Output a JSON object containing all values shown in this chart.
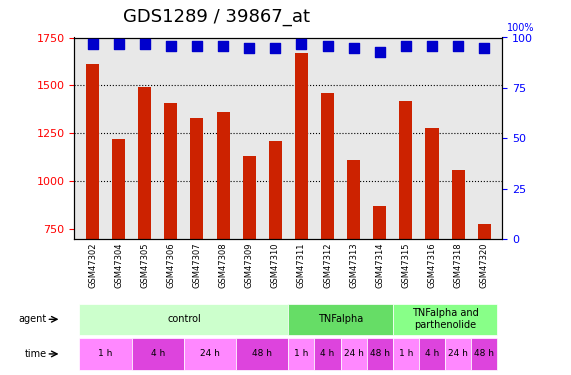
{
  "title": "GDS1289 / 39867_at",
  "samples": [
    "GSM47302",
    "GSM47304",
    "GSM47305",
    "GSM47306",
    "GSM47307",
    "GSM47308",
    "GSM47309",
    "GSM47310",
    "GSM47311",
    "GSM47312",
    "GSM47313",
    "GSM47314",
    "GSM47315",
    "GSM47316",
    "GSM47318",
    "GSM47320"
  ],
  "counts": [
    1610,
    1220,
    1490,
    1410,
    1330,
    1360,
    1130,
    1210,
    1670,
    1460,
    1110,
    870,
    1420,
    1280,
    1060,
    780
  ],
  "percentile_ranks": [
    97,
    97,
    97,
    96,
    96,
    96,
    95,
    95,
    97,
    96,
    95,
    93,
    96,
    96,
    96,
    95
  ],
  "ylim_left": [
    700,
    1750
  ],
  "ylim_right": [
    0,
    100
  ],
  "yticks_left": [
    750,
    1000,
    1250,
    1500,
    1750
  ],
  "yticks_right": [
    0,
    25,
    50,
    75,
    100
  ],
  "bar_color": "#cc2200",
  "dot_color": "#0000cc",
  "background_color": "#e8e8e8",
  "agent_groups": [
    {
      "label": "control",
      "start": 0,
      "end": 8,
      "color": "#ccffcc"
    },
    {
      "label": "TNFalpha",
      "start": 8,
      "end": 12,
      "color": "#66dd66"
    },
    {
      "label": "TNFalpha and\nparthenolide",
      "start": 12,
      "end": 16,
      "color": "#88ff88"
    }
  ],
  "time_groups": [
    {
      "label": "1 h",
      "start": 0,
      "end": 2,
      "color": "#ff88ff"
    },
    {
      "label": "4 h",
      "start": 2,
      "end": 4,
      "color": "#dd44dd"
    },
    {
      "label": "24 h",
      "start": 4,
      "end": 6,
      "color": "#ff88ff"
    },
    {
      "label": "48 h",
      "start": 6,
      "end": 8,
      "color": "#dd44dd"
    },
    {
      "label": "1 h",
      "start": 8,
      "end": 9,
      "color": "#ff88ff"
    },
    {
      "label": "4 h",
      "start": 9,
      "end": 10,
      "color": "#dd44dd"
    },
    {
      "label": "24 h",
      "start": 10,
      "end": 11,
      "color": "#ff88ff"
    },
    {
      "label": "48 h",
      "start": 11,
      "end": 12,
      "color": "#dd44dd"
    },
    {
      "label": "1 h",
      "start": 12,
      "end": 13,
      "color": "#ff88ff"
    },
    {
      "label": "4 h",
      "start": 13,
      "end": 14,
      "color": "#dd44dd"
    },
    {
      "label": "24 h",
      "start": 14,
      "end": 15,
      "color": "#ff88ff"
    },
    {
      "label": "48 h",
      "start": 15,
      "end": 16,
      "color": "#dd44dd"
    }
  ],
  "legend_count_color": "#cc2200",
  "legend_dot_color": "#0000cc",
  "bar_width": 0.5,
  "dot_size": 60,
  "grid_color": "#000000",
  "title_fontsize": 13,
  "tick_fontsize": 8,
  "label_fontsize": 8
}
